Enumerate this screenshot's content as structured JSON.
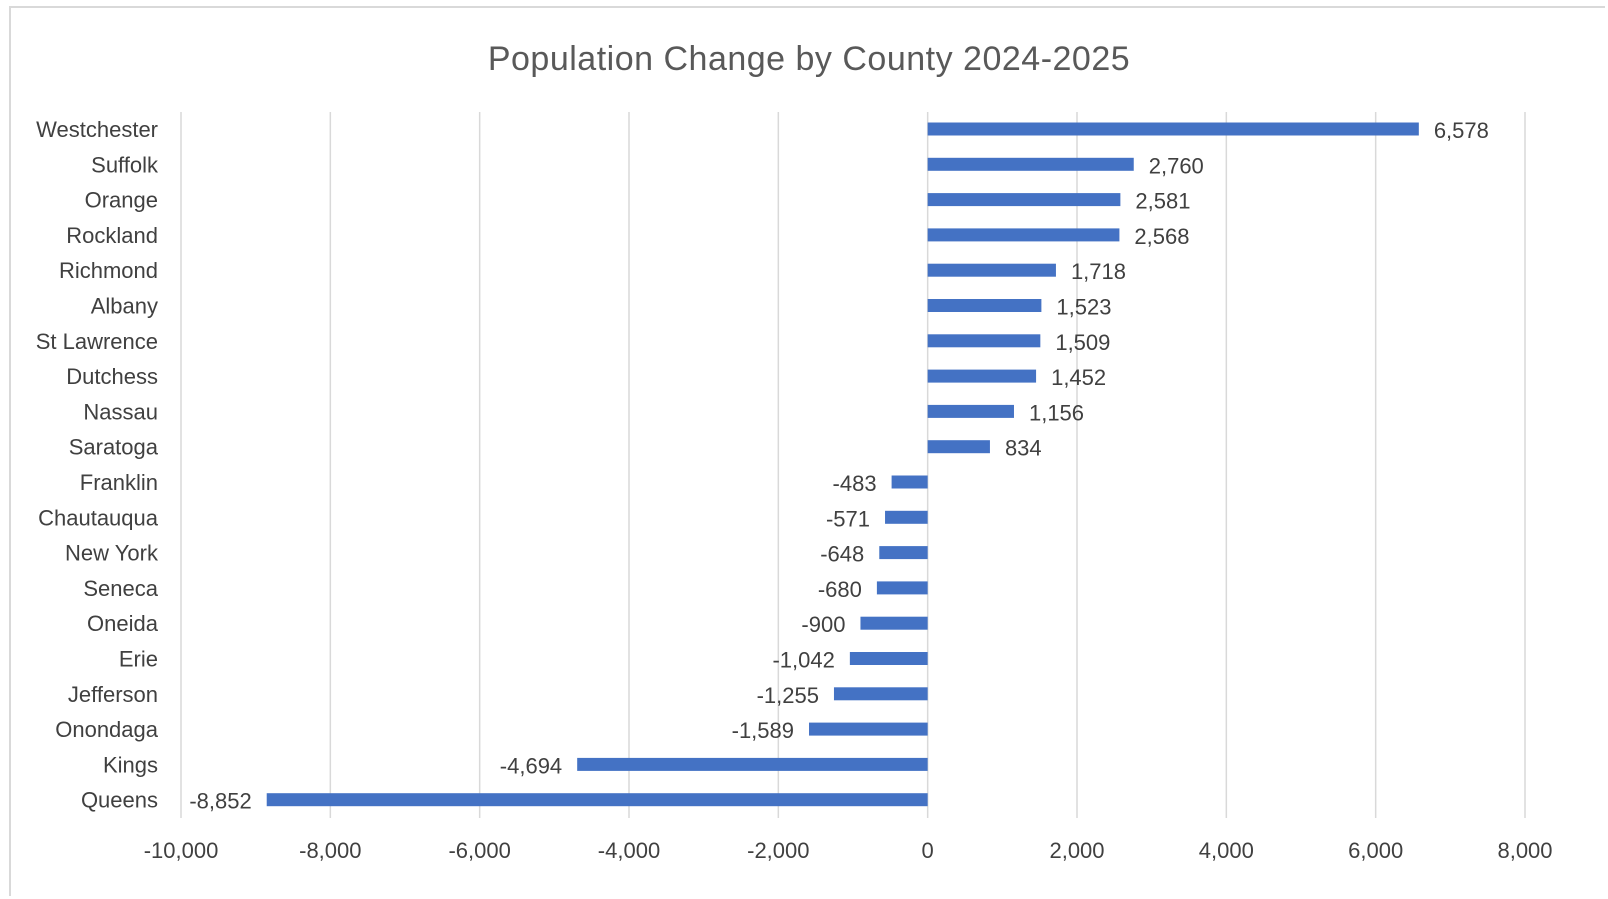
{
  "chart_data": {
    "type": "bar",
    "orientation": "horizontal",
    "title": "Population Change by County 2024-2025",
    "xlabel": "",
    "ylabel": "",
    "xlim": [
      -10000,
      8000
    ],
    "x_ticks": [
      -10000,
      -8000,
      -6000,
      -4000,
      -2000,
      0,
      2000,
      4000,
      6000,
      8000
    ],
    "x_tick_labels": [
      "-10,000",
      "-8,000",
      "-6,000",
      "-4,000",
      "-2,000",
      "0",
      "2,000",
      "4,000",
      "6,000",
      "8,000"
    ],
    "grid": "vertical",
    "legend": "none",
    "bar_color": "#4472c4",
    "categories": [
      "Westchester",
      "Suffolk",
      "Orange",
      "Rockland",
      "Richmond",
      "Albany",
      "St Lawrence",
      "Dutchess",
      "Nassau",
      "Saratoga",
      "Franklin",
      "Chautauqua",
      "New York",
      "Seneca",
      "Oneida",
      "Erie",
      "Jefferson",
      "Onondaga",
      "Kings",
      "Queens"
    ],
    "values": [
      6578,
      2760,
      2581,
      2568,
      1718,
      1523,
      1509,
      1452,
      1156,
      834,
      -483,
      -571,
      -648,
      -680,
      -900,
      -1042,
      -1255,
      -1589,
      -4694,
      -8852
    ],
    "value_labels": [
      "6,578",
      "2,760",
      "2,581",
      "2,568",
      "1,718",
      "1,523",
      "1,509",
      "1,452",
      "1,156",
      "834",
      "-483",
      "-571",
      "-648",
      "-680",
      "-900",
      "-1,042",
      "-1,255",
      "-1,589",
      "-4,694",
      "-8,852"
    ]
  }
}
